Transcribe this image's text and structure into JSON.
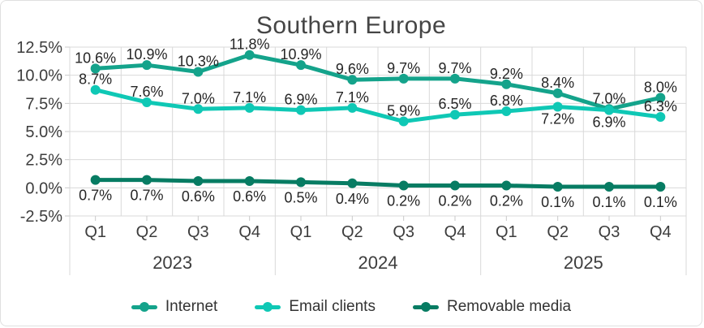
{
  "chart_data": {
    "type": "line",
    "title": "Southern Europe",
    "grid": true,
    "legend_position": "bottom",
    "y_axis": {
      "min": -2.5,
      "max": 12.5,
      "step": 2.5,
      "tick_values": [
        12.5,
        10.0,
        7.5,
        5.0,
        2.5,
        0.0,
        -2.5
      ],
      "tick_labels": [
        "12.5%",
        "10.0%",
        "7.5%",
        "5.0%",
        "2.5%",
        "0.0%",
        "-2.5%"
      ]
    },
    "x_axis": {
      "years": [
        {
          "label": "2023",
          "quarters": [
            "Q1",
            "Q2",
            "Q3",
            "Q4"
          ]
        },
        {
          "label": "2024",
          "quarters": [
            "Q1",
            "Q2",
            "Q3",
            "Q4"
          ]
        },
        {
          "label": "2025",
          "quarters": [
            "Q1",
            "Q2",
            "Q3",
            "Q4"
          ]
        }
      ]
    },
    "series": [
      {
        "name": "Internet",
        "color": "#14A38B",
        "values": [
          10.6,
          10.9,
          10.3,
          11.8,
          10.9,
          9.6,
          9.7,
          9.7,
          9.2,
          8.4,
          7.0,
          8.0
        ],
        "data_labels": [
          "10.6%",
          "10.9%",
          "10.3%",
          "11.8%",
          "10.9%",
          "9.6%",
          "9.7%",
          "9.7%",
          "9.2%",
          "8.4%",
          "7.0%",
          "8.0%"
        ],
        "label_side": "above",
        "label_side_overrides": {},
        "below_offset": 22
      },
      {
        "name": "Email clients",
        "color": "#0FC8B5",
        "values": [
          8.7,
          7.6,
          7.0,
          7.1,
          6.9,
          7.1,
          5.9,
          6.5,
          6.8,
          7.2,
          6.9,
          6.3
        ],
        "data_labels": [
          "8.7%",
          "7.6%",
          "7.0%",
          "7.1%",
          "6.9%",
          "7.1%",
          "5.9%",
          "6.5%",
          "6.8%",
          "7.2%",
          "6.9%",
          "6.3%"
        ],
        "label_side": "above",
        "label_side_overrides": {
          "9": "below",
          "10": "below"
        },
        "below_offset": 21
      },
      {
        "name": "Removable media",
        "color": "#077C63",
        "values": [
          0.7,
          0.7,
          0.6,
          0.6,
          0.5,
          0.4,
          0.2,
          0.2,
          0.2,
          0.1,
          0.1,
          0.1
        ],
        "data_labels": [
          "0.7%",
          "0.7%",
          "0.6%",
          "0.6%",
          "0.5%",
          "0.4%",
          "0.2%",
          "0.2%",
          "0.2%",
          "0.1%",
          "0.1%",
          "0.1%"
        ],
        "label_side": "below",
        "label_side_overrides": {},
        "below_offset": 25
      }
    ],
    "style": {
      "grid_color": "#d9d9d9",
      "tick_color": "#c9c9c9",
      "axis_text_color": "#3d3d3d",
      "data_label_color": "#262626",
      "title_color": "#454545"
    }
  }
}
